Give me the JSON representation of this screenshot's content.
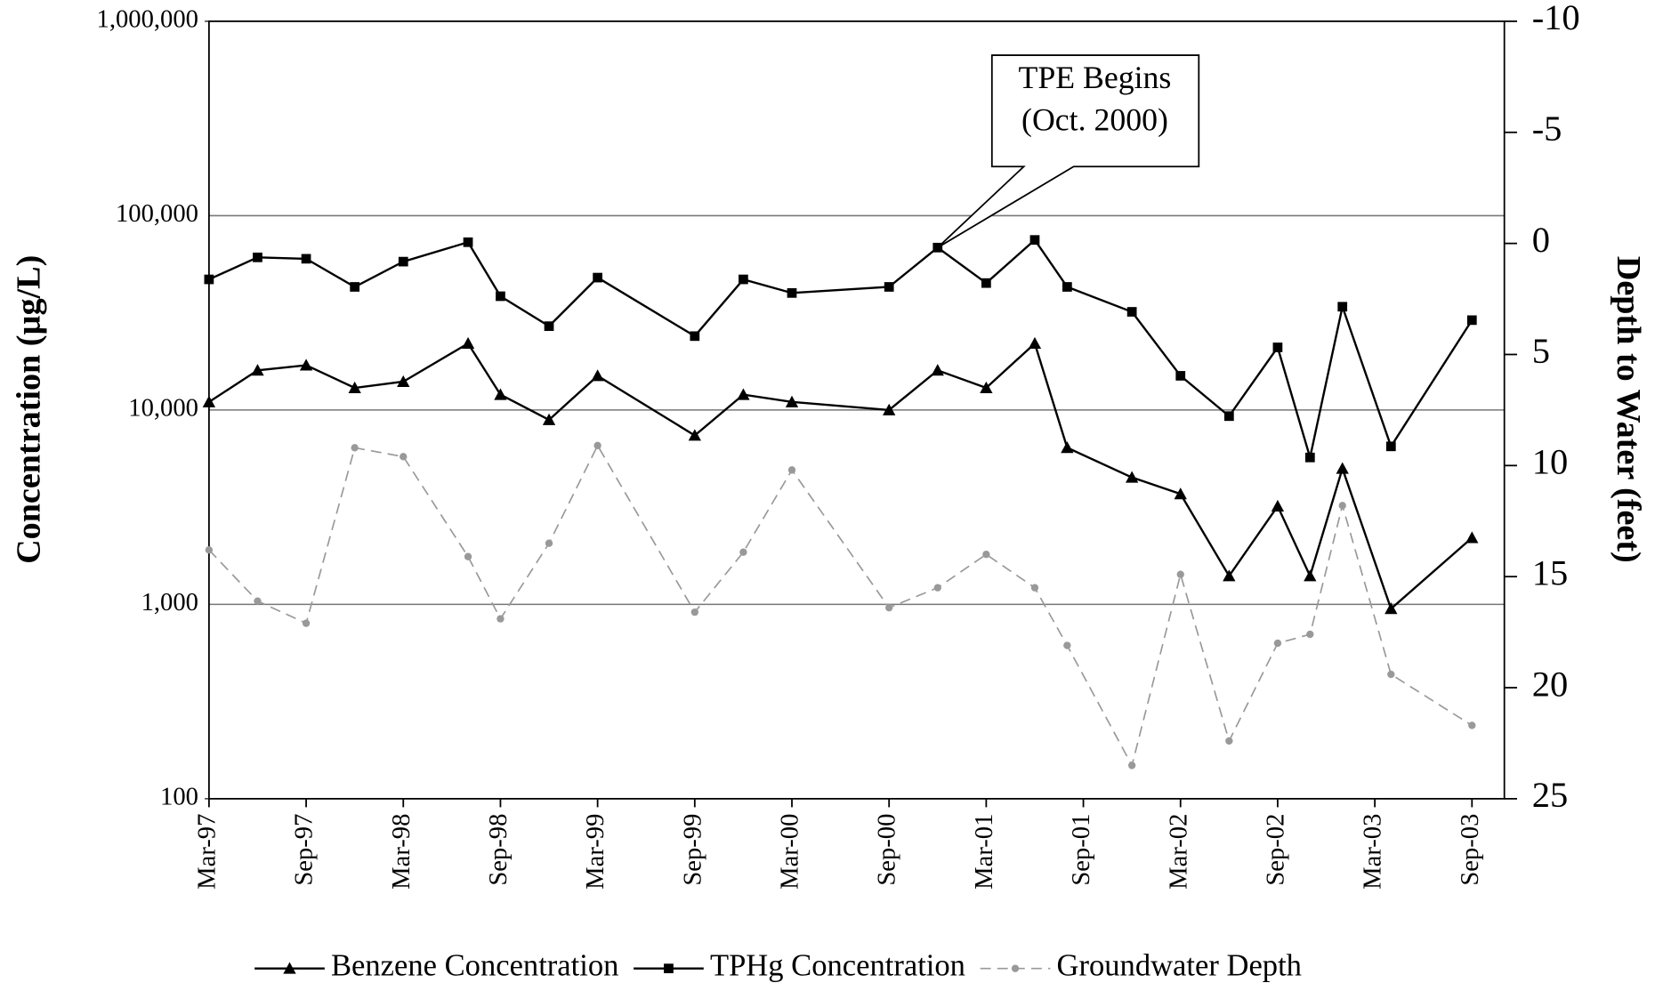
{
  "chart_data": {
    "type": "line",
    "y_label": "Concentration (µg/L)",
    "y2_label": "Depth to Water (feet)",
    "annotation": [
      "TPE Begins",
      "(Oct. 2000)"
    ],
    "x": [
      "Mar-97",
      "Jun-97",
      "Sep-97",
      "Dec-97",
      "Mar-98",
      "Jul-98",
      "Sep-98",
      "Dec-98",
      "Mar-99",
      "Sep-99",
      "Dec-99",
      "Mar-00",
      "Sep-00",
      "Dec-00",
      "Mar-01",
      "Jun-01",
      "Aug-01",
      "Dec-01",
      "Mar-02",
      "Jun-02",
      "Sep-02",
      "Nov-02",
      "Jan-03",
      "Apr-03",
      "Sep-03"
    ],
    "xlim": [
      "Mar-97",
      "Nov-03"
    ],
    "xticks": [
      "Mar-97",
      "Sep-97",
      "Mar-98",
      "Sep-98",
      "Mar-99",
      "Sep-99",
      "Mar-00",
      "Sep-00",
      "Mar-01",
      "Sep-01",
      "Mar-02",
      "Sep-02",
      "Mar-03",
      "Sep-03"
    ],
    "ylog": true,
    "ylim": [
      100,
      1000000
    ],
    "yticks": [
      {
        "value": 100,
        "label": "100"
      },
      {
        "value": 1000,
        "label": "1,000"
      },
      {
        "value": 10000,
        "label": "10,000"
      },
      {
        "value": 100000,
        "label": "100,000"
      },
      {
        "value": 1000000,
        "label": "1,000,000"
      }
    ],
    "y2lim": [
      25,
      -10
    ],
    "y2ticks": [
      -10,
      -5,
      0,
      5,
      10,
      15,
      20,
      25
    ],
    "grid": true,
    "series": [
      {
        "name": "Benzene Concentration",
        "color": "#000000",
        "marker": "triangle",
        "dashed": false,
        "values": [
          11000,
          16000,
          17000,
          13000,
          14000,
          22000,
          12000,
          8900,
          15000,
          7400,
          12000,
          11000,
          10000,
          16000,
          13000,
          22000,
          6400,
          4500,
          3700,
          1400,
          3200,
          1400,
          5000,
          950,
          2200
        ]
      },
      {
        "name": "TPHg Concentration",
        "color": "#000000",
        "marker": "square",
        "dashed": false,
        "values": [
          47000,
          61000,
          60000,
          43000,
          58000,
          73000,
          38500,
          27000,
          48000,
          24000,
          47000,
          40000,
          43000,
          68500,
          45000,
          75000,
          43000,
          32000,
          15000,
          9300,
          21000,
          5700,
          34000,
          6500,
          29000
        ]
      },
      {
        "name": "Groundwater Depth",
        "color": "#999999",
        "marker": "circle",
        "dashed": true,
        "axis": "y2",
        "values": [
          13.8,
          16.1,
          17.1,
          9.2,
          9.6,
          14.1,
          16.9,
          13.5,
          9.1,
          16.6,
          13.9,
          10.2,
          16.4,
          15.5,
          14.0,
          15.5,
          18.1,
          23.5,
          14.9,
          22.4,
          18.0,
          17.6,
          11.8,
          19.4,
          21.7
        ]
      }
    ]
  }
}
